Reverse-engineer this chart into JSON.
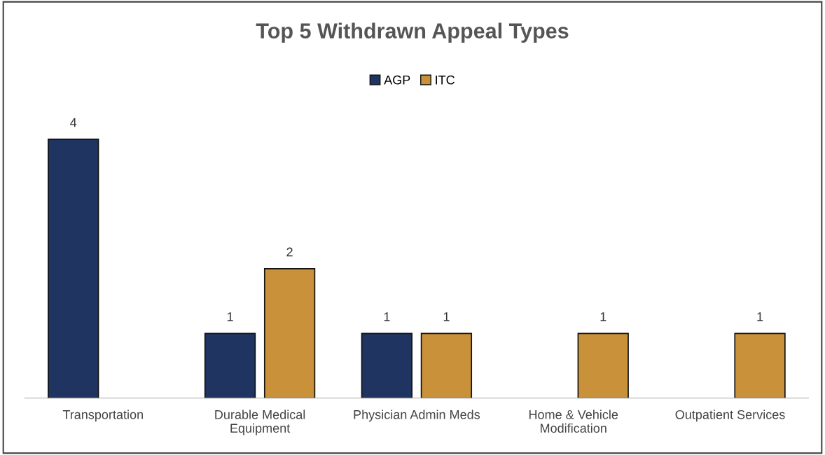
{
  "chart_data": {
    "type": "bar",
    "title": "Top 5 Withdrawn Appeal Types",
    "categories": [
      "Transportation",
      "Durable Medical\nEquipment",
      "Physician Admin Meds",
      "Home & Vehicle\nModification",
      "Outpatient Services"
    ],
    "series": [
      {
        "name": "AGP",
        "color": "#1f3461",
        "values": [
          4,
          1,
          1,
          null,
          null
        ]
      },
      {
        "name": "ITC",
        "color": "#c8913a",
        "values": [
          null,
          2,
          1,
          1,
          1
        ]
      }
    ],
    "data_labels": true,
    "legend": "top",
    "grid": false,
    "tick_labels": "x"
  }
}
